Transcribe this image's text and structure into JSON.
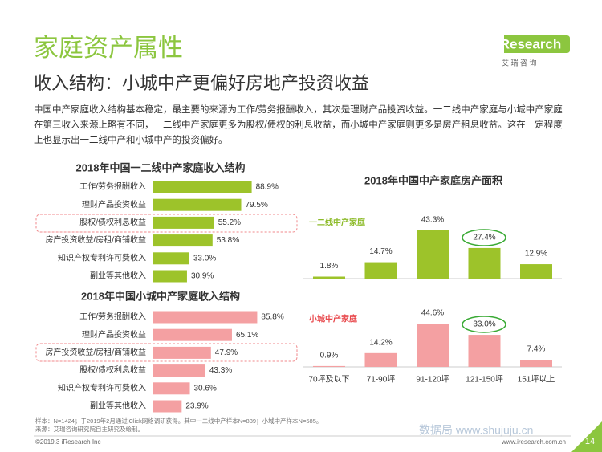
{
  "header": {
    "title": "家庭资产属性",
    "subtitle": "收入结构：小城中产更偏好房地产投资收益",
    "logo": "iResearch",
    "logo_sub": "艾 瑞 咨 询"
  },
  "intro": "中国中产家庭收入结构基本稳定，最主要的来源为工作/劳务报酬收入，其次是理财产品投资收益。一二线中产家庭与小城中产家庭在第三收入来源上略有不同，一二线中产家庭更多为股权/债权的利息收益，而小城中产家庭则更多是房产租息收益。这在一定程度上也显示出一二线中产和小城中产的投资偏好。",
  "chart_data": [
    {
      "type": "bar",
      "orientation": "horizontal",
      "title": "2018年中国一二线中产家庭收入结构",
      "color": "#9dc32a",
      "categories": [
        "工作/劳务报酬收入",
        "理财产品投资收益",
        "股权/债权利息收益",
        "房产投资收益/房租/商铺收益",
        "知识产权专利许可费收入",
        "副业等其他收入"
      ],
      "values": [
        88.9,
        79.5,
        55.2,
        53.8,
        33.0,
        30.9
      ],
      "value_labels": [
        "88.9%",
        "79.5%",
        "55.2%",
        "53.8%",
        "33.0%",
        "30.9%"
      ]
    },
    {
      "type": "bar",
      "orientation": "horizontal",
      "title": "2018年中国小城中产家庭收入结构",
      "color": "#f4a0a2",
      "categories": [
        "工作/劳务报酬收入",
        "理财产品投资收益",
        "房产投资收益/房租/商铺收益",
        "股权/债权利息收益",
        "知识产权专利许可费收入",
        "副业等其他收入"
      ],
      "values": [
        85.8,
        65.1,
        47.9,
        43.3,
        30.6,
        23.9
      ],
      "value_labels": [
        "85.8%",
        "65.1%",
        "47.9%",
        "43.3%",
        "30.6%",
        "23.9%"
      ]
    },
    {
      "type": "bar",
      "orientation": "vertical",
      "title": "2018年中国中产家庭房产面积",
      "categories": [
        "70坪及以下",
        "71-90坪",
        "91-120坪",
        "121-150坪",
        "151坪以上"
      ],
      "series": [
        {
          "name": "一二线中产家庭",
          "color": "#9dc32a",
          "values": [
            1.8,
            14.7,
            43.3,
            27.4,
            12.9
          ],
          "value_labels": [
            "1.8%",
            "14.7%",
            "43.3%",
            "27.4%",
            "12.9%"
          ]
        },
        {
          "name": "小城中产家庭",
          "color": "#f4a0a2",
          "values": [
            0.9,
            14.2,
            44.6,
            33.0,
            7.4
          ],
          "value_labels": [
            "0.9%",
            "14.2%",
            "44.6%",
            "33.0%",
            "7.4%"
          ]
        }
      ]
    }
  ],
  "footer": {
    "notes": [
      "样本：N=1424；于2019年2月通过iClick网络调研获得。其中一二线中产样本N=839；小城中产样本N=585。",
      "来源：艾瑞咨询研究院自主研究及绘制。"
    ],
    "copyright": "©2019.3 iResearch Inc",
    "url": "www.iresearch.com.cn",
    "page": "14",
    "watermark": "数据局 www.shujuju.cn"
  }
}
